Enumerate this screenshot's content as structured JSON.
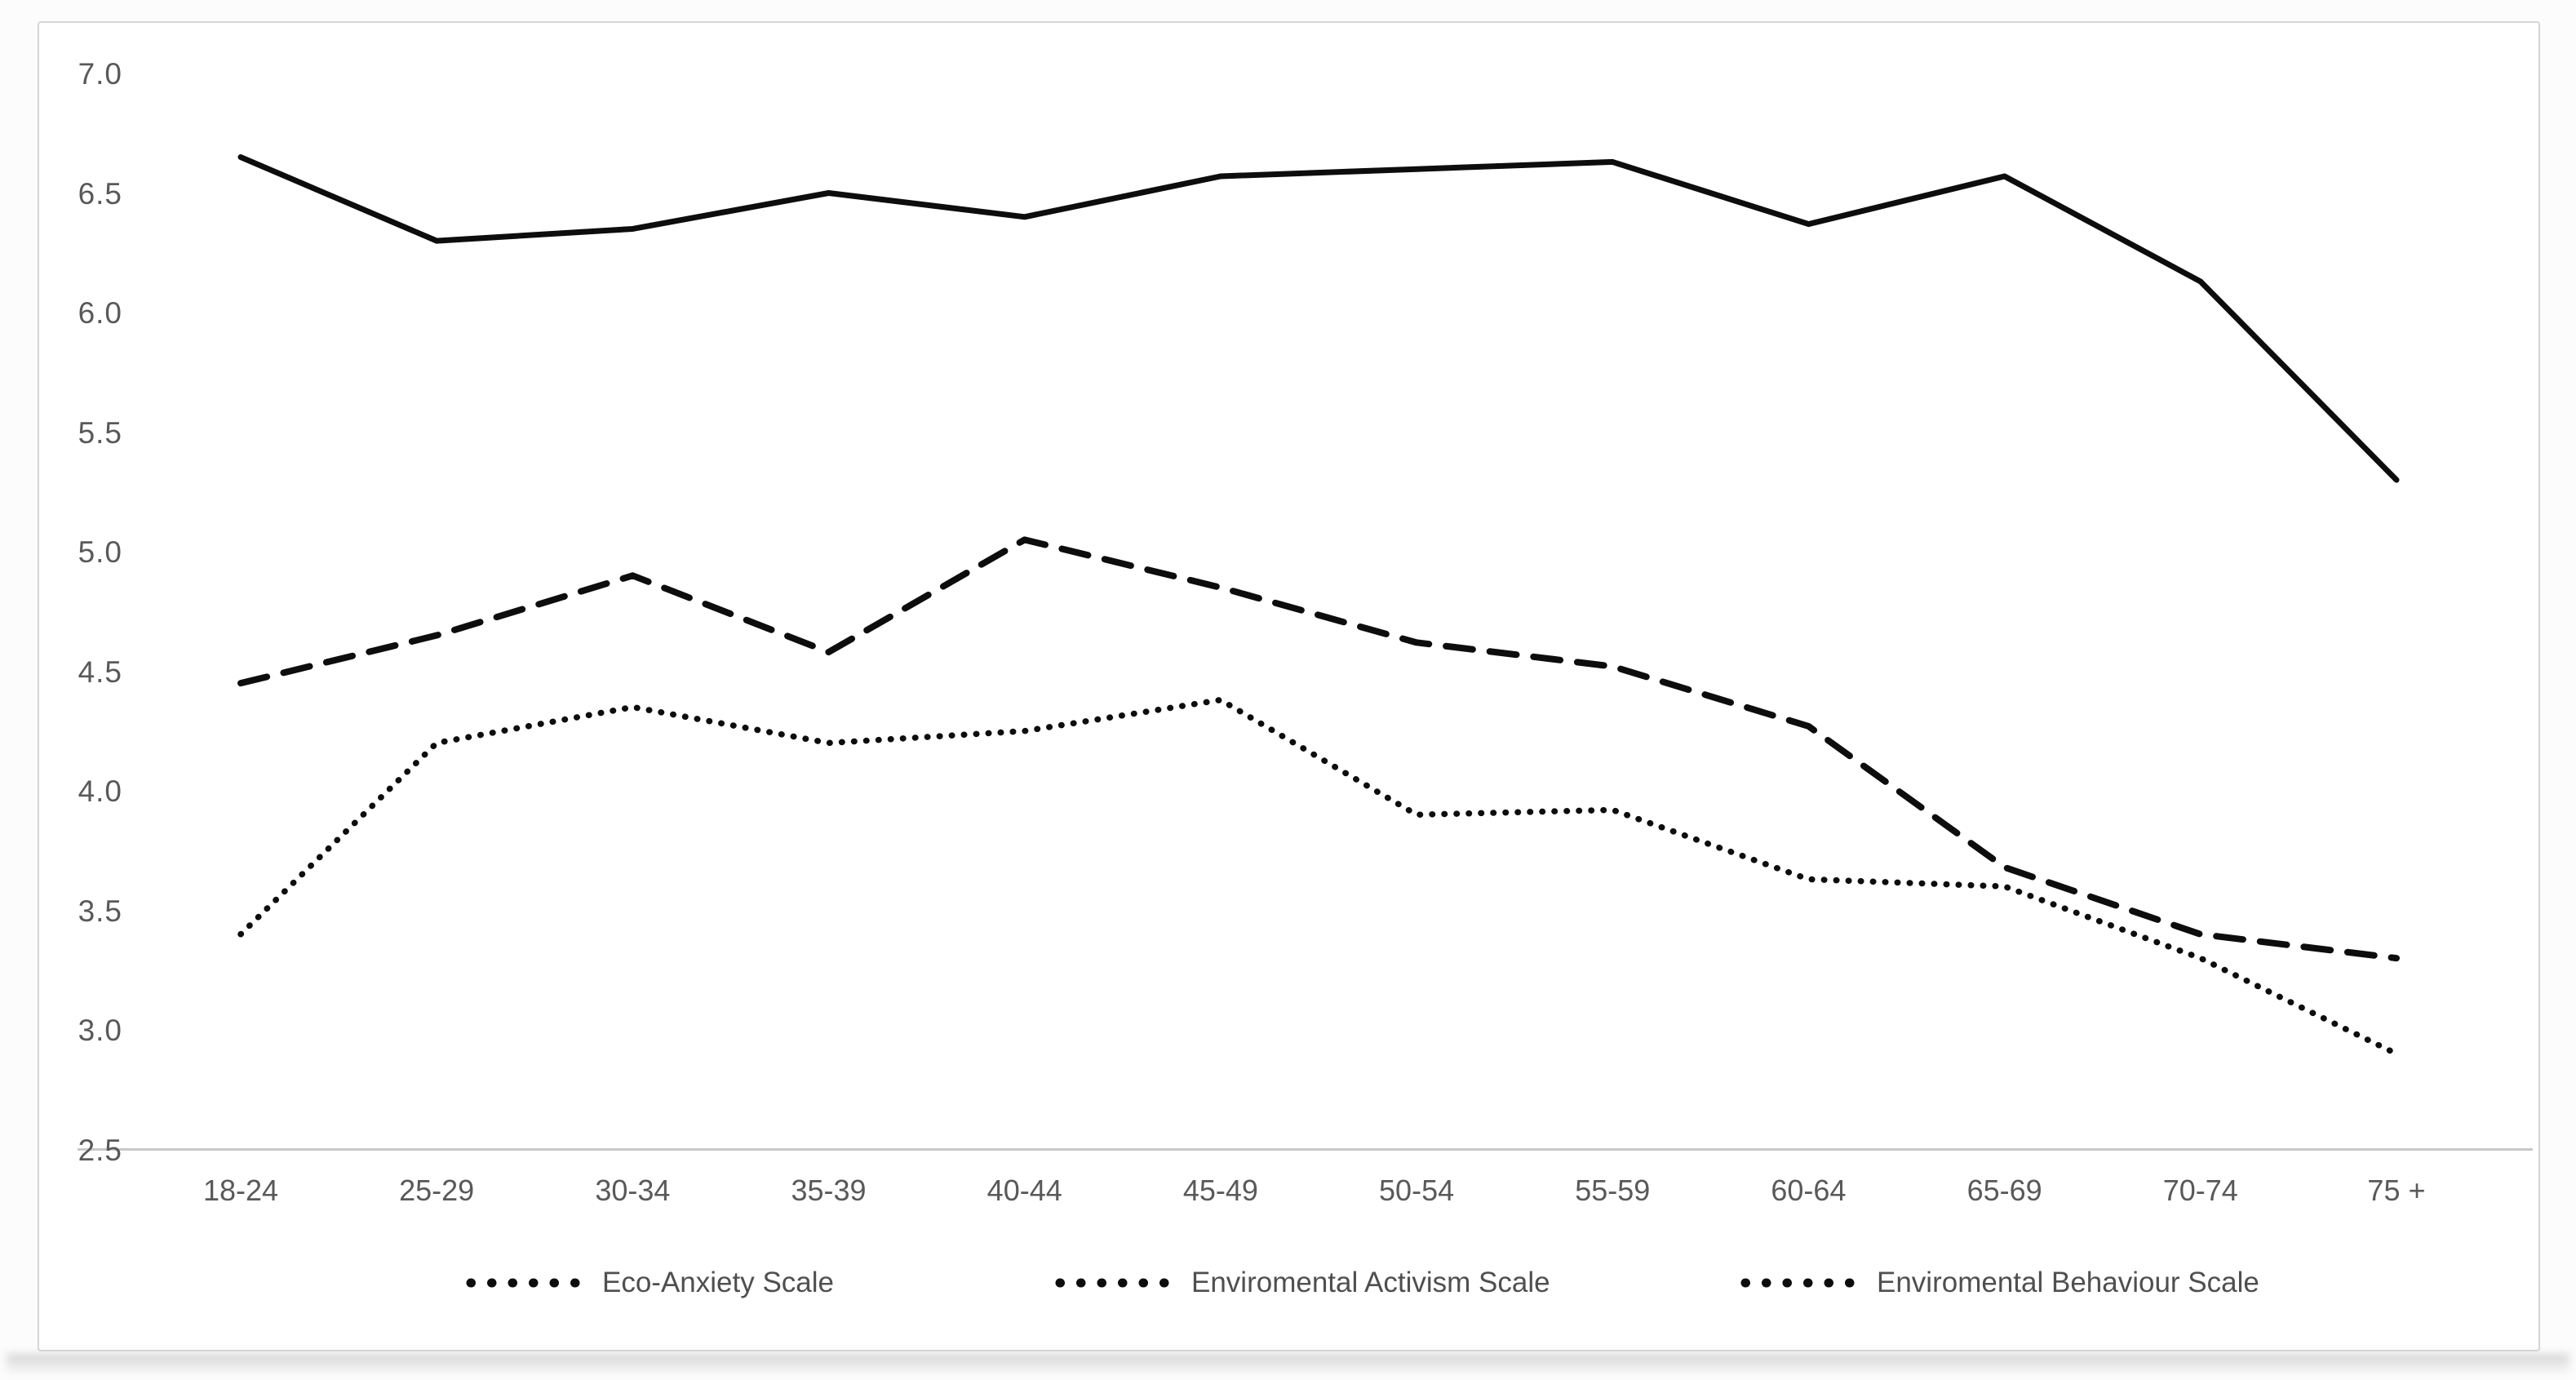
{
  "chart_data": {
    "type": "line",
    "title": "",
    "xlabel": "",
    "ylabel": "",
    "categories": [
      "18-24",
      "25-29",
      "30-34",
      "35-39",
      "40-44",
      "45-49",
      "50-54",
      "55-59",
      "60-64",
      "65-69",
      "70-74",
      "75 +"
    ],
    "series": [
      {
        "name": "Eco-Anxiety Scale",
        "line_style": "solid",
        "values": [
          6.65,
          6.3,
          6.35,
          6.5,
          6.4,
          6.57,
          6.6,
          6.63,
          6.37,
          6.57,
          6.13,
          5.3
        ]
      },
      {
        "name": "Enviromental Activism Scale",
        "line_style": "dashed",
        "values": [
          4.45,
          4.65,
          4.9,
          4.58,
          5.05,
          4.85,
          4.62,
          4.52,
          4.27,
          3.68,
          3.4,
          3.3
        ]
      },
      {
        "name": "Enviromental Behaviour Scale",
        "line_style": "dotted",
        "values": [
          3.4,
          4.2,
          4.35,
          4.2,
          4.25,
          4.38,
          3.9,
          3.92,
          3.63,
          3.6,
          3.3,
          2.9
        ]
      }
    ],
    "y_axis": {
      "min": 2.5,
      "max": 7.0,
      "step": 0.5,
      "tick_labels": [
        "7.0",
        "6.5",
        "6.0",
        "5.5",
        "5.0",
        "4.5",
        "4.0",
        "3.5",
        "3.0",
        "2.5"
      ]
    },
    "legend": {
      "position": "bottom",
      "items": [
        {
          "label": "Eco-Anxiety Scale",
          "marker": "dotted"
        },
        {
          "label": "Enviromental Activism Scale",
          "marker": "dotted"
        },
        {
          "label": "Enviromental Behaviour Scale",
          "marker": "dotted"
        }
      ]
    },
    "grid": false,
    "colors": {
      "line": "#0d0d0d",
      "axis_line": "#c9c9c9",
      "tick_text": "#595959",
      "legend_text": "#4f4f4f",
      "background": "#ffffff",
      "frame_border": "#d6d6d6"
    }
  }
}
